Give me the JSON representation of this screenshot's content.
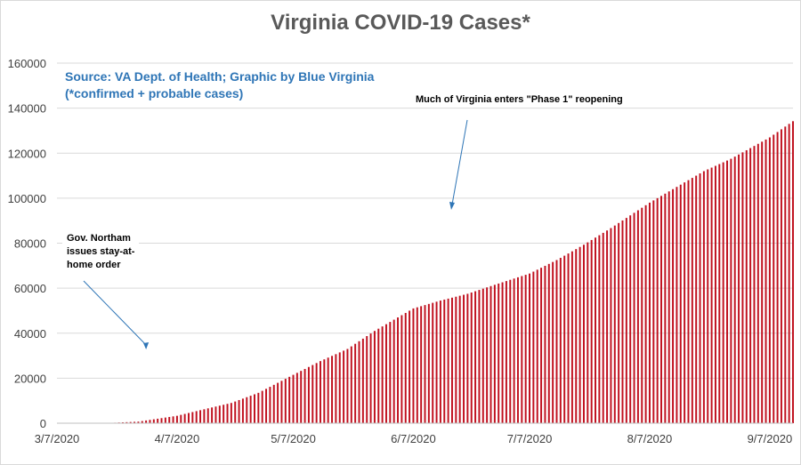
{
  "chart_data": {
    "type": "bar",
    "title": "Virginia COVID-19 Cases*",
    "source_note": "Source: VA Dept. of Health; Graphic by Blue Virginia",
    "source_subnote": "(*confirmed + probable cases)",
    "xlabel": "",
    "ylabel": "",
    "ylim": [
      0,
      160000
    ],
    "y_ticks": [
      0,
      20000,
      40000,
      60000,
      80000,
      100000,
      120000,
      140000,
      160000
    ],
    "y_tick_labels": [
      "0",
      "20000",
      "40000",
      "60000",
      "80000",
      "100000",
      "120000",
      "140000",
      "160000"
    ],
    "x_start": "2020-03-07",
    "x_end": "2020-09-13",
    "x_tick_labels": [
      "3/7/2020",
      "4/7/2020",
      "5/7/2020",
      "6/7/2020",
      "7/7/2020",
      "8/7/2020",
      "9/7/2020"
    ],
    "x_tick_dates": [
      "2020-03-07",
      "2020-04-07",
      "2020-05-07",
      "2020-06-07",
      "2020-07-07",
      "2020-08-07",
      "2020-09-07"
    ],
    "grid": true,
    "bar_color": "#c0101e",
    "annotation_color": "#2e75b6",
    "annotations": [
      {
        "text_lines": [
          "Gov. Northam",
          "issues stay-at-",
          "home order"
        ],
        "date": "2020-03-30"
      },
      {
        "text_lines": [
          "Much of Virginia enters \"Phase 1\" reopening"
        ],
        "date": "2020-05-15"
      }
    ],
    "series": [
      {
        "name": "",
        "anchors": [
          [
            "2020-03-07",
            0
          ],
          [
            "2020-03-14",
            30
          ],
          [
            "2020-03-21",
            150
          ],
          [
            "2020-03-28",
            700
          ],
          [
            "2020-04-07",
            3300
          ],
          [
            "2020-04-14",
            6200
          ],
          [
            "2020-04-21",
            9000
          ],
          [
            "2020-04-28",
            13500
          ],
          [
            "2020-05-07",
            21500
          ],
          [
            "2020-05-14",
            27600
          ],
          [
            "2020-05-21",
            33000
          ],
          [
            "2020-05-28",
            41000
          ],
          [
            "2020-06-07",
            51000
          ],
          [
            "2020-06-14",
            54500
          ],
          [
            "2020-06-21",
            57500
          ],
          [
            "2020-06-28",
            61500
          ],
          [
            "2020-07-07",
            66500
          ],
          [
            "2020-07-14",
            72500
          ],
          [
            "2020-07-21",
            79300
          ],
          [
            "2020-07-28",
            86700
          ],
          [
            "2020-08-07",
            98000
          ],
          [
            "2020-08-14",
            105000
          ],
          [
            "2020-08-21",
            112000
          ],
          [
            "2020-08-28",
            117500
          ],
          [
            "2020-09-07",
            127000
          ],
          [
            "2020-09-13",
            134200
          ]
        ]
      }
    ]
  }
}
